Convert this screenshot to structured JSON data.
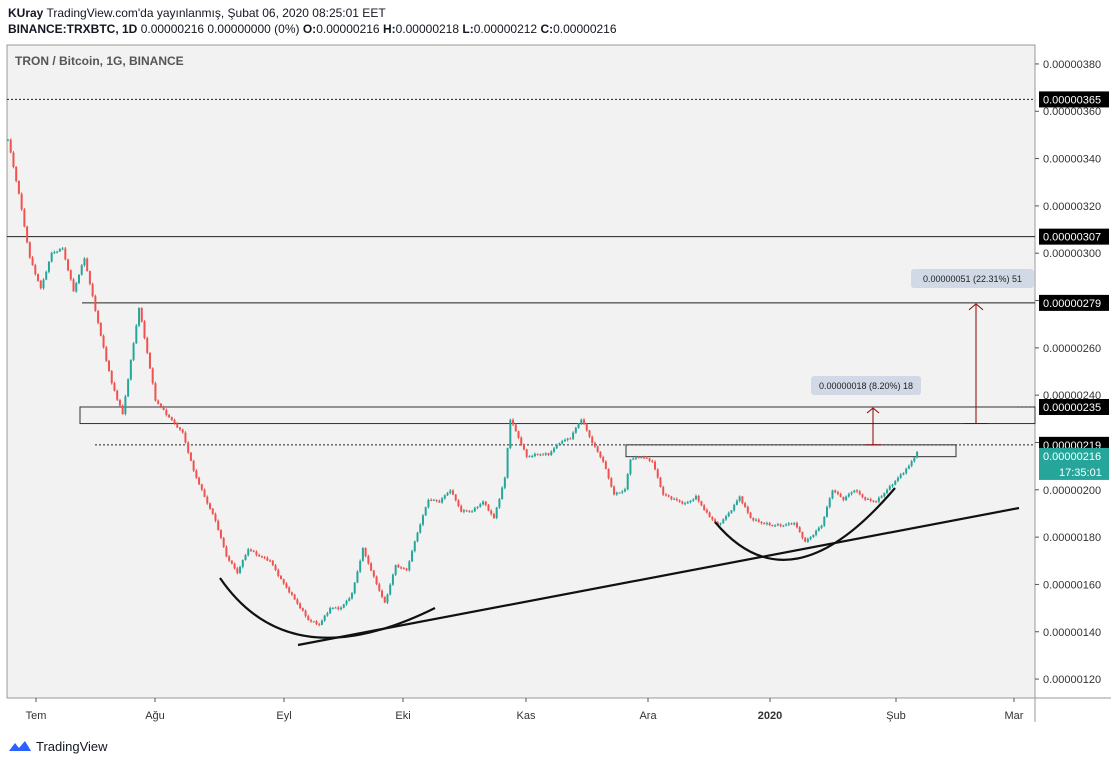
{
  "header": {
    "author": "KUray",
    "published": "TradingView.com'da yayınlanmış, Şubat 06, 2020 08:25:01 EET",
    "symbol": "BINANCE:TRXBTC, 1D",
    "change": "0.00000216 0.00000000 (0%)",
    "o_label": "O:",
    "o_value": "0.00000216",
    "h_label": "H:",
    "h_value": "0.00000218",
    "l_label": "L:",
    "l_value": "0.00000212",
    "c_label": "C:",
    "c_value": "0.00000216"
  },
  "footer": {
    "brand": "TradingView"
  },
  "chart_data": {
    "type": "candlestick",
    "title": "TRON / Bitcoin, 1G, BINANCE",
    "ylim": [
      1.12e-06,
      3.88e-06
    ],
    "y_ticks": [
      "0.00000380",
      "0.00000360",
      "0.00000340",
      "0.00000320",
      "0.00000300",
      "0.00000280",
      "0.00000260",
      "0.00000240",
      "0.00000220",
      "0.00000200",
      "0.00000180",
      "0.00000160",
      "0.00000140",
      "0.00000120"
    ],
    "x_ticks": [
      "Tem",
      "Ağu",
      "Eyl",
      "Eki",
      "Kas",
      "Ara",
      "2020",
      "Şub",
      "Mar"
    ],
    "price_lines": [
      {
        "value": 3.65e-06,
        "label": "0.00000365",
        "style": "dotted"
      },
      {
        "value": 3.07e-06,
        "label": "0.00000307",
        "style": "solid"
      },
      {
        "value": 2.79e-06,
        "label": "0.00000279",
        "style": "solid"
      },
      {
        "value": 2.35e-06,
        "label": "0.00000235",
        "style": "none"
      },
      {
        "value": 2.19e-06,
        "label": "0.00000219",
        "style": "dotted"
      }
    ],
    "last_price": {
      "value": 2.16e-06,
      "label": "0.00000216",
      "countdown": "17:35:01",
      "color": "#26a69a"
    },
    "zones": [
      {
        "from": 2.28e-06,
        "to": 2.35e-06
      },
      {
        "from": 2.14e-06,
        "to": 2.19e-06
      }
    ],
    "measure_labels": [
      {
        "text": "0.00000051 (22.31%) 51"
      },
      {
        "text": "0.00000018 (8.20%) 18"
      }
    ],
    "colors": {
      "up": "#26a69a",
      "down": "#ef5350",
      "arrow": "#8b0000",
      "grid_bg": "#f2f2f2"
    },
    "series_path": [
      [
        0,
        3.48e-06
      ],
      [
        4,
        3.25e-06
      ],
      [
        8,
        2.98e-06
      ],
      [
        12,
        2.85e-06
      ],
      [
        16,
        3e-06
      ],
      [
        20,
        3.02e-06
      ],
      [
        24,
        2.84e-06
      ],
      [
        28,
        2.98e-06
      ],
      [
        34,
        2.65e-06
      ],
      [
        38,
        2.45e-06
      ],
      [
        42,
        2.32e-06
      ],
      [
        46,
        2.62e-06
      ],
      [
        48,
        2.77e-06
      ],
      [
        51,
        2.58e-06
      ],
      [
        54,
        2.38e-06
      ],
      [
        58,
        2.32e-06
      ],
      [
        64,
        2.24e-06
      ],
      [
        68,
        2.08e-06
      ],
      [
        72,
        1.97e-06
      ],
      [
        76,
        1.87e-06
      ],
      [
        80,
        1.72e-06
      ],
      [
        84,
        1.65e-06
      ],
      [
        88,
        1.75e-06
      ],
      [
        92,
        1.72e-06
      ],
      [
        96,
        1.7e-06
      ],
      [
        100,
        1.62e-06
      ],
      [
        106,
        1.52e-06
      ],
      [
        110,
        1.45e-06
      ],
      [
        114,
        1.43e-06
      ],
      [
        118,
        1.5e-06
      ],
      [
        122,
        1.5e-06
      ],
      [
        126,
        1.56e-06
      ],
      [
        130,
        1.75e-06
      ],
      [
        134,
        1.63e-06
      ],
      [
        138,
        1.52e-06
      ],
      [
        142,
        1.68e-06
      ],
      [
        146,
        1.66e-06
      ],
      [
        150,
        1.82e-06
      ],
      [
        154,
        1.96e-06
      ],
      [
        158,
        1.95e-06
      ],
      [
        162,
        2e-06
      ],
      [
        166,
        1.91e-06
      ],
      [
        170,
        1.91e-06
      ],
      [
        174,
        1.95e-06
      ],
      [
        178,
        1.88e-06
      ],
      [
        182,
        2.05e-06
      ],
      [
        184,
        2.3e-06
      ],
      [
        187,
        2.22e-06
      ],
      [
        190,
        2.14e-06
      ],
      [
        194,
        2.15e-06
      ],
      [
        198,
        2.15e-06
      ],
      [
        202,
        2.2e-06
      ],
      [
        206,
        2.22e-06
      ],
      [
        210,
        2.3e-06
      ],
      [
        214,
        2.2e-06
      ],
      [
        218,
        2.12e-06
      ],
      [
        222,
        1.98e-06
      ],
      [
        226,
        2e-06
      ],
      [
        228,
        2.13e-06
      ],
      [
        232,
        2.14e-06
      ],
      [
        236,
        2.12e-06
      ],
      [
        240,
        1.98e-06
      ],
      [
        244,
        1.96e-06
      ],
      [
        248,
        1.94e-06
      ],
      [
        252,
        1.97e-06
      ],
      [
        256,
        1.9e-06
      ],
      [
        260,
        1.85e-06
      ],
      [
        264,
        1.9e-06
      ],
      [
        268,
        1.97e-06
      ],
      [
        272,
        1.88e-06
      ],
      [
        276,
        1.86e-06
      ],
      [
        280,
        1.85e-06
      ],
      [
        284,
        1.85e-06
      ],
      [
        288,
        1.86e-06
      ],
      [
        292,
        1.78e-06
      ],
      [
        294,
        1.8e-06
      ],
      [
        298,
        1.85e-06
      ],
      [
        302,
        2e-06
      ],
      [
        306,
        1.96e-06
      ],
      [
        310,
        2e-06
      ],
      [
        314,
        1.96e-06
      ],
      [
        318,
        1.95e-06
      ],
      [
        322,
        2e-06
      ],
      [
        326,
        2.05e-06
      ],
      [
        330,
        2.1e-06
      ],
      [
        333,
        2.16e-06
      ]
    ]
  }
}
